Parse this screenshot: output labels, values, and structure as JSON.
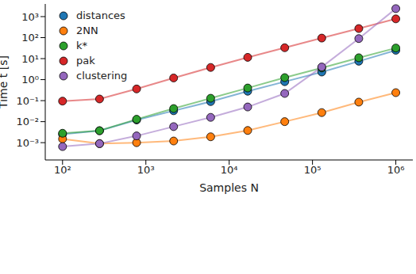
{
  "chart_data": {
    "type": "line",
    "x_label": "Samples N",
    "y_label": "Time t [s]",
    "log": true,
    "grid": false,
    "legend": "upper left",
    "marker": "o",
    "x": [
      100,
      278,
      774,
      2154,
      5995,
      16681,
      46416,
      129155,
      359381,
      1000000
    ],
    "xlim": [
      62,
      1600000
    ],
    "xticks": [
      {
        "value": 100,
        "label": "10²"
      },
      {
        "value": 1000,
        "label": "10³"
      },
      {
        "value": 10000,
        "label": "10⁴"
      },
      {
        "value": 100000,
        "label": "10⁵"
      },
      {
        "value": 1000000,
        "label": "10⁶"
      }
    ],
    "ylim": [
      0.00015,
      4000
    ],
    "yticks": [
      {
        "value": 0.001,
        "label": "10⁻³"
      },
      {
        "value": 0.01,
        "label": "10⁻²"
      },
      {
        "value": 0.1,
        "label": "10⁻¹"
      },
      {
        "value": 1,
        "label": "10⁰"
      },
      {
        "value": 10,
        "label": "10¹"
      },
      {
        "value": 100,
        "label": "10²"
      },
      {
        "value": 1000,
        "label": "10³"
      }
    ],
    "series": [
      {
        "name": "distances",
        "color": "#1f77b4",
        "values": [
          0.0025,
          0.0037,
          0.012,
          0.033,
          0.09,
          0.28,
          0.8,
          2.3,
          7.5,
          25
        ]
      },
      {
        "name": "2NN",
        "color": "#ff7f0e",
        "values": [
          0.0015,
          0.0009,
          0.001,
          0.0012,
          0.0019,
          0.0038,
          0.01,
          0.027,
          0.085,
          0.24
        ]
      },
      {
        "name": "k*",
        "color": "#2ca02c",
        "values": [
          0.0028,
          0.0037,
          0.013,
          0.042,
          0.13,
          0.4,
          1.25,
          3.6,
          11,
          32
        ]
      },
      {
        "name": "pak",
        "color": "#d62728",
        "values": [
          0.095,
          0.12,
          0.36,
          1.2,
          3.8,
          11.5,
          33,
          95,
          270,
          780
        ]
      },
      {
        "name": "clustering",
        "color": "#9467bd",
        "values": [
          0.00065,
          0.0009,
          0.0021,
          0.0058,
          0.016,
          0.05,
          0.22,
          4,
          90,
          2400
        ]
      }
    ]
  }
}
